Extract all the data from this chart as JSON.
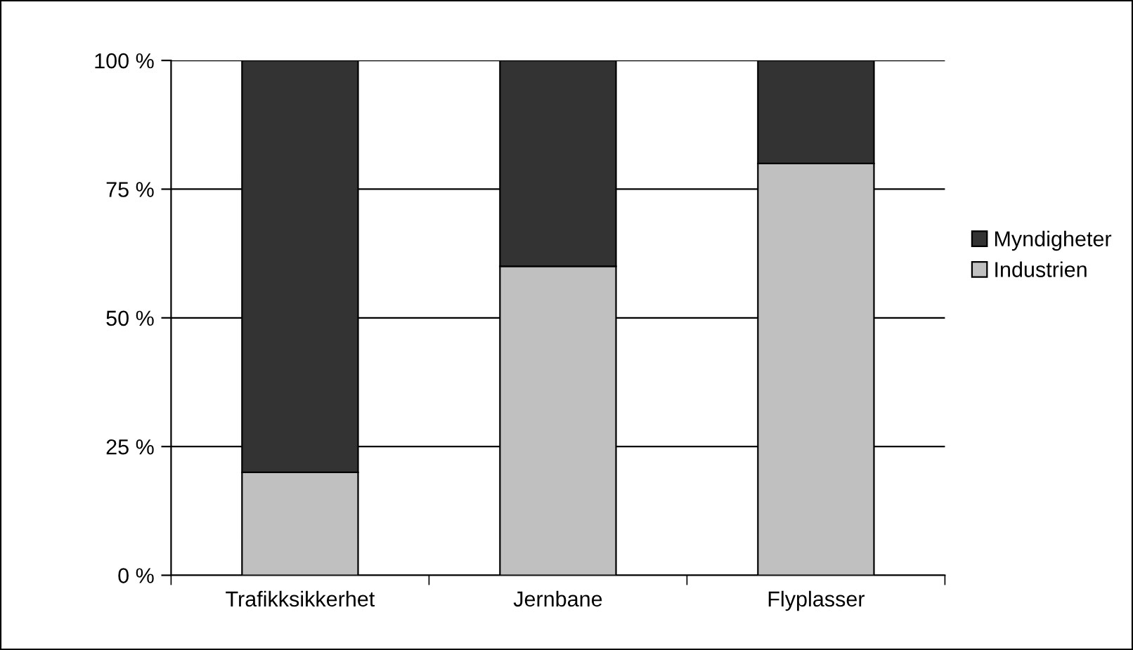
{
  "chart_data": {
    "type": "bar",
    "stacked": true,
    "categories": [
      "Trafikksikkerhet",
      "Jernbane",
      "Flyplasser"
    ],
    "series": [
      {
        "name": "Industrien",
        "color": "#c0c0c0",
        "values": [
          20,
          60,
          80
        ]
      },
      {
        "name": "Myndigheter",
        "color": "#333333",
        "values": [
          80,
          40,
          20
        ]
      }
    ],
    "ylim": [
      0,
      100
    ],
    "yticks": [
      {
        "value": 0,
        "label": "0 %"
      },
      {
        "value": 25,
        "label": "25 %"
      },
      {
        "value": 50,
        "label": "50 %"
      },
      {
        "value": 75,
        "label": "75 %"
      },
      {
        "value": 100,
        "label": "100 %"
      }
    ],
    "grid": "y",
    "legend": "right"
  }
}
